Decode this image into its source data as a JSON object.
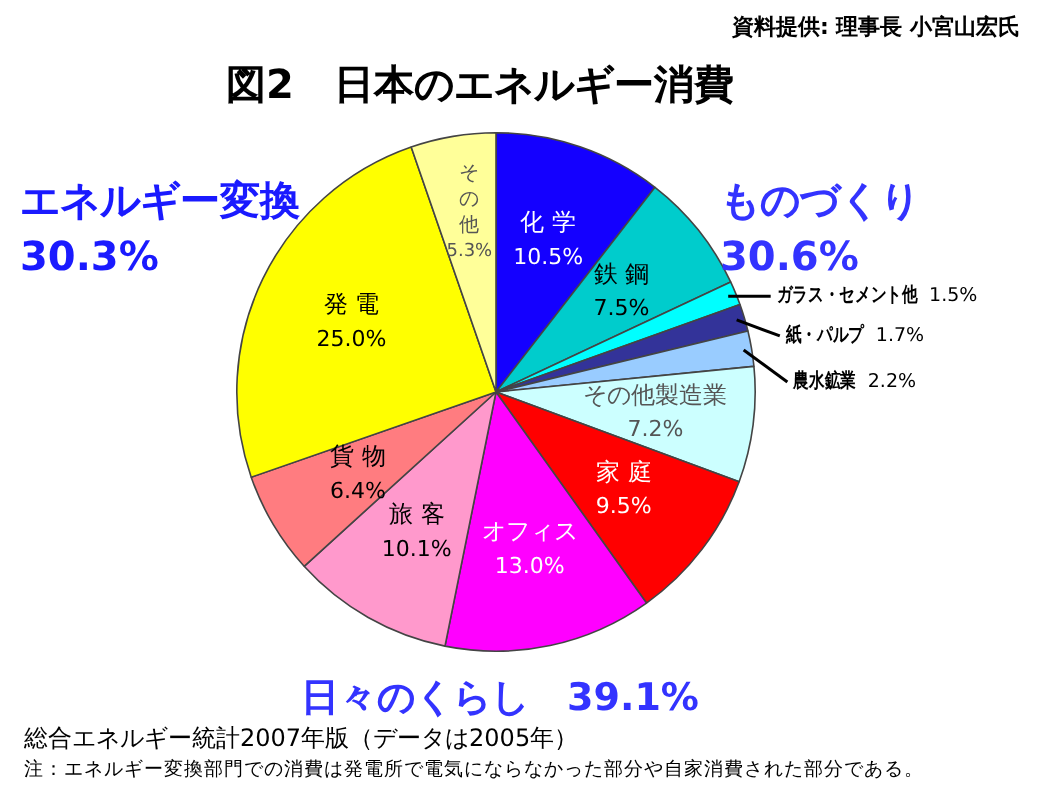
{
  "chart_data": {
    "type": "pie",
    "title": "図2　日本のエネルギー消費",
    "categories": [
      "化 学",
      "鉄 鋼",
      "ガラス・セメント他",
      "紙・パルプ",
      "農水鉱業",
      "その他製造業",
      "家 庭",
      "オフィス",
      "旅 客",
      "貨 物",
      "発 電",
      "その他"
    ],
    "values": [
      10.5,
      7.5,
      1.5,
      1.7,
      2.2,
      7.2,
      9.5,
      13.0,
      10.1,
      6.4,
      25.0,
      5.3
    ],
    "value_labels": [
      "10.5%",
      "7.5%",
      "1.5%",
      "1.7%",
      "2.2%",
      "7.2%",
      "9.5%",
      "13.0%",
      "10.1%",
      "6.4%",
      "25.0%",
      "5.3%"
    ],
    "colors": [
      "#1400ff",
      "#00cccc",
      "#00ffff",
      "#333399",
      "#99ccff",
      "#ccffff",
      "#ff0000",
      "#ff00ff",
      "#ff99cc",
      "#ff7c80",
      "#ffff00",
      "#ffff99"
    ],
    "annotations": [
      "資料提供: 理事長 小宮山宏氏",
      "ものづくり\n30.6%",
      "エネルギー変換\n30.3%",
      "日々のくらし　39.1%",
      "総合エネルギー統計2007年版（データは2005年）",
      "注：エネルギー変換部門での消費は発電所で電気にならなかった部分や自家消費された部分である。"
    ],
    "legend": false
  }
}
